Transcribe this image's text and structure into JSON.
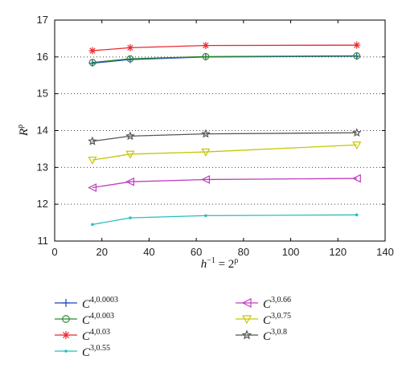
{
  "chart_data": {
    "type": "line",
    "xlabel": {
      "base": "h",
      "base_sup": "−1",
      "rest": " = 2",
      "rest_sup": "ρ"
    },
    "ylabel": {
      "base": "R",
      "sup": "ρ"
    },
    "xlim": [
      0,
      140
    ],
    "ylim": [
      11,
      17
    ],
    "xticks": [
      0,
      20,
      40,
      60,
      80,
      100,
      120,
      140
    ],
    "yticks": [
      11,
      12,
      13,
      14,
      15,
      16,
      17
    ],
    "grid": "horizontal dotted",
    "legend_position": "below plot, two columns",
    "x": [
      16,
      32,
      64,
      128
    ],
    "series": [
      {
        "name": "C",
        "name_sup": "4,0.0003",
        "color": "#1f3fbf",
        "marker": "plus",
        "values": [
          15.83,
          15.93,
          16.0,
          16.02
        ]
      },
      {
        "name": "C",
        "name_sup": "4,0.003",
        "color": "#2e8b2e",
        "marker": "circle",
        "values": [
          15.85,
          15.95,
          16.01,
          16.03
        ]
      },
      {
        "name": "C",
        "name_sup": "4,0.03",
        "color": "#e8292f",
        "marker": "asterisk",
        "values": [
          16.17,
          16.25,
          16.31,
          16.32
        ]
      },
      {
        "name": "C",
        "name_sup": "3,0.55",
        "color": "#2bbdbd",
        "marker": "dot",
        "values": [
          11.45,
          11.63,
          11.69,
          11.71
        ]
      },
      {
        "name": "C",
        "name_sup": "3,0.66",
        "color": "#bf3fbf",
        "marker": "triangle-left",
        "values": [
          12.45,
          12.61,
          12.67,
          12.7
        ]
      },
      {
        "name": "C",
        "name_sup": "3,0.75",
        "color": "#c6c600",
        "marker": "triangle-down",
        "values": [
          13.2,
          13.36,
          13.42,
          13.61
        ]
      },
      {
        "name": "C",
        "name_sup": "3,0.8",
        "color": "#555555",
        "marker": "star",
        "values": [
          13.71,
          13.85,
          13.91,
          13.94
        ]
      }
    ]
  }
}
